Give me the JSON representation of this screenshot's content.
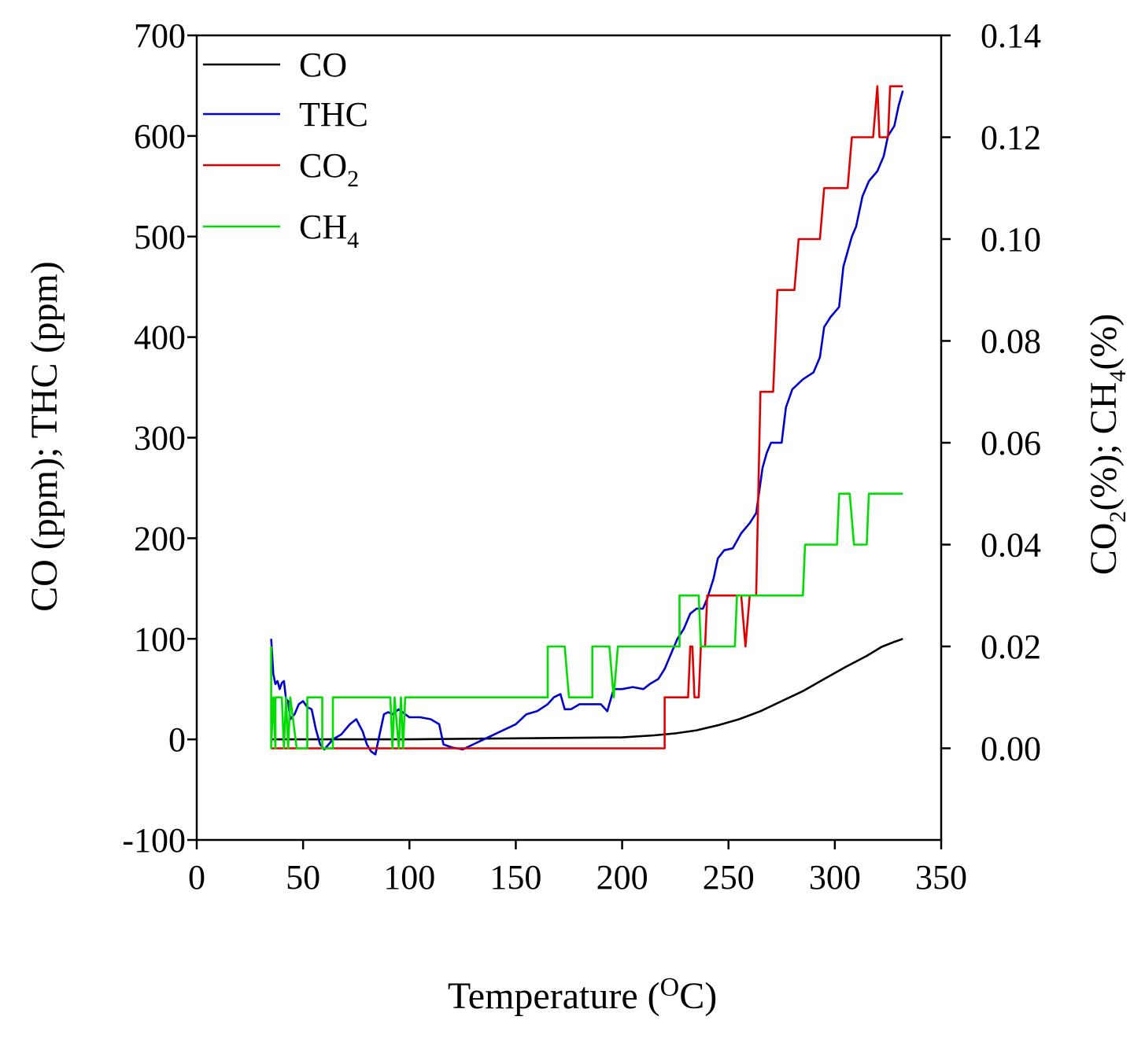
{
  "chart_data": {
    "type": "line",
    "title": "",
    "xlabel": {
      "base": "Temperature (",
      "sup": "O",
      "tail": "C)"
    },
    "ylabel_left": "CO (ppm); THC (ppm)",
    "ylabel_right": {
      "p1": "CO",
      "s1": "2",
      "p2": "(%); CH",
      "s2": "4",
      "p3": "(%)"
    },
    "xlim": [
      0,
      350
    ],
    "ylim_left": [
      -100,
      700
    ],
    "ylim_right": [
      -0.018,
      0.14
    ],
    "x_ticks": [
      0,
      50,
      100,
      150,
      200,
      250,
      300,
      350
    ],
    "x_tick_labels": [
      "0",
      "50",
      "100",
      "150",
      "200",
      "250",
      "300",
      "350"
    ],
    "y_left_ticks": [
      -100,
      0,
      100,
      200,
      300,
      400,
      500,
      600,
      700
    ],
    "y_left_tick_labels": [
      "-100",
      "0",
      "100",
      "200",
      "300",
      "400",
      "500",
      "600",
      "700"
    ],
    "y_right_ticks": [
      0.0,
      0.02,
      0.04,
      0.06,
      0.08,
      0.1,
      0.12,
      0.14
    ],
    "y_right_tick_labels": [
      "0.00",
      "0.02",
      "0.04",
      "0.06",
      "0.08",
      "0.10",
      "0.12",
      "0.14"
    ],
    "legend_position": "top-left",
    "series": [
      {
        "name": "CO",
        "label_base": "CO",
        "label_sub": "",
        "color": "#000000",
        "axis": "left",
        "points": [
          [
            35,
            0
          ],
          [
            100,
            0
          ],
          [
            150,
            1
          ],
          [
            200,
            2
          ],
          [
            215,
            4
          ],
          [
            225,
            6
          ],
          [
            235,
            9
          ],
          [
            245,
            14
          ],
          [
            255,
            20
          ],
          [
            265,
            28
          ],
          [
            275,
            38
          ],
          [
            285,
            48
          ],
          [
            295,
            60
          ],
          [
            305,
            72
          ],
          [
            315,
            83
          ],
          [
            322,
            92
          ],
          [
            328,
            97
          ],
          [
            332,
            100
          ]
        ]
      },
      {
        "name": "THC",
        "label_base": "THC",
        "label_sub": "",
        "color": "#0000cc",
        "axis": "left",
        "points": [
          [
            35,
            100
          ],
          [
            36,
            65
          ],
          [
            37,
            55
          ],
          [
            38,
            58
          ],
          [
            39,
            50
          ],
          [
            40,
            56
          ],
          [
            41,
            58
          ],
          [
            42,
            40
          ],
          [
            43,
            38
          ],
          [
            44,
            20
          ],
          [
            46,
            25
          ],
          [
            48,
            35
          ],
          [
            50,
            38
          ],
          [
            52,
            32
          ],
          [
            54,
            30
          ],
          [
            56,
            10
          ],
          [
            58,
            -5
          ],
          [
            60,
            -10
          ],
          [
            62,
            -5
          ],
          [
            64,
            0
          ],
          [
            68,
            5
          ],
          [
            72,
            15
          ],
          [
            75,
            20
          ],
          [
            78,
            8
          ],
          [
            80,
            -5
          ],
          [
            82,
            -12
          ],
          [
            84,
            -15
          ],
          [
            86,
            5
          ],
          [
            88,
            25
          ],
          [
            90,
            27
          ],
          [
            92,
            25
          ],
          [
            95,
            30
          ],
          [
            98,
            25
          ],
          [
            100,
            22
          ],
          [
            105,
            22
          ],
          [
            110,
            20
          ],
          [
            114,
            15
          ],
          [
            116,
            -5
          ],
          [
            120,
            -8
          ],
          [
            125,
            -10
          ],
          [
            130,
            -5
          ],
          [
            135,
            0
          ],
          [
            140,
            5
          ],
          [
            145,
            10
          ],
          [
            150,
            15
          ],
          [
            155,
            25
          ],
          [
            160,
            28
          ],
          [
            165,
            35
          ],
          [
            168,
            42
          ],
          [
            171,
            45
          ],
          [
            173,
            30
          ],
          [
            176,
            30
          ],
          [
            180,
            35
          ],
          [
            185,
            35
          ],
          [
            190,
            35
          ],
          [
            193,
            28
          ],
          [
            196,
            50
          ],
          [
            200,
            50
          ],
          [
            205,
            52
          ],
          [
            210,
            50
          ],
          [
            213,
            55
          ],
          [
            217,
            60
          ],
          [
            220,
            70
          ],
          [
            223,
            85
          ],
          [
            226,
            100
          ],
          [
            229,
            110
          ],
          [
            232,
            125
          ],
          [
            235,
            130
          ],
          [
            238,
            130
          ],
          [
            240,
            140
          ],
          [
            243,
            160
          ],
          [
            245,
            180
          ],
          [
            248,
            188
          ],
          [
            252,
            190
          ],
          [
            256,
            205
          ],
          [
            260,
            215
          ],
          [
            263,
            225
          ],
          [
            266,
            270
          ],
          [
            268,
            285
          ],
          [
            270,
            295
          ],
          [
            275,
            295
          ],
          [
            277,
            330
          ],
          [
            280,
            348
          ],
          [
            285,
            358
          ],
          [
            290,
            365
          ],
          [
            293,
            380
          ],
          [
            295,
            410
          ],
          [
            298,
            420
          ],
          [
            302,
            430
          ],
          [
            304,
            470
          ],
          [
            306,
            485
          ],
          [
            308,
            500
          ],
          [
            310,
            510
          ],
          [
            313,
            540
          ],
          [
            316,
            555
          ],
          [
            320,
            565
          ],
          [
            323,
            580
          ],
          [
            325,
            600
          ],
          [
            328,
            610
          ],
          [
            330,
            630
          ],
          [
            332,
            645
          ]
        ]
      },
      {
        "name": "CO2",
        "label_base": "CO",
        "label_sub": "2",
        "color": "#e00000",
        "axis": "right",
        "points": [
          [
            35,
            0
          ],
          [
            220,
            0
          ],
          [
            220,
            0.01
          ],
          [
            231,
            0.01
          ],
          [
            232,
            0.02
          ],
          [
            233,
            0.02
          ],
          [
            234,
            0.01
          ],
          [
            236,
            0.01
          ],
          [
            237,
            0.02
          ],
          [
            239,
            0.02
          ],
          [
            240,
            0.03
          ],
          [
            250,
            0.03
          ],
          [
            251,
            0.03
          ],
          [
            256,
            0.03
          ],
          [
            258,
            0.02
          ],
          [
            260,
            0.03
          ],
          [
            263,
            0.03
          ],
          [
            265,
            0.07
          ],
          [
            271,
            0.07
          ],
          [
            273,
            0.09
          ],
          [
            281,
            0.09
          ],
          [
            283,
            0.1
          ],
          [
            293,
            0.1
          ],
          [
            295,
            0.11
          ],
          [
            306,
            0.11
          ],
          [
            308,
            0.12
          ],
          [
            318,
            0.12
          ],
          [
            320,
            0.13
          ],
          [
            321,
            0.12
          ],
          [
            325,
            0.12
          ],
          [
            326,
            0.13
          ],
          [
            332,
            0.13
          ]
        ]
      },
      {
        "name": "CH4",
        "label_base": "CH",
        "label_sub": "4",
        "color": "#00dd00",
        "axis": "right",
        "points": [
          [
            35,
            0.02
          ],
          [
            35,
            0
          ],
          [
            36,
            0.01
          ],
          [
            37,
            0
          ],
          [
            37,
            0.01
          ],
          [
            40,
            0.01
          ],
          [
            41,
            0
          ],
          [
            42,
            0.01
          ],
          [
            43,
            0
          ],
          [
            44,
            0.01
          ],
          [
            47,
            0
          ],
          [
            52,
            0
          ],
          [
            52,
            0.01
          ],
          [
            59,
            0.01
          ],
          [
            59,
            0
          ],
          [
            64,
            0
          ],
          [
            64,
            0.01
          ],
          [
            91,
            0.01
          ],
          [
            92,
            0
          ],
          [
            93,
            0.01
          ],
          [
            95,
            0
          ],
          [
            96,
            0.01
          ],
          [
            97,
            0
          ],
          [
            98,
            0.01
          ],
          [
            165,
            0.01
          ],
          [
            165,
            0.02
          ],
          [
            173,
            0.02
          ],
          [
            175,
            0.01
          ],
          [
            186,
            0.01
          ],
          [
            186,
            0.02
          ],
          [
            194,
            0.02
          ],
          [
            196,
            0.01
          ],
          [
            198,
            0.02
          ],
          [
            227,
            0.02
          ],
          [
            227,
            0.03
          ],
          [
            236,
            0.03
          ],
          [
            237,
            0.02
          ],
          [
            253,
            0.02
          ],
          [
            254,
            0.03
          ],
          [
            285,
            0.03
          ],
          [
            286,
            0.04
          ],
          [
            301,
            0.04
          ],
          [
            302,
            0.05
          ],
          [
            307,
            0.05
          ],
          [
            309,
            0.04
          ],
          [
            315,
            0.04
          ],
          [
            316,
            0.05
          ],
          [
            332,
            0.05
          ]
        ]
      }
    ]
  }
}
